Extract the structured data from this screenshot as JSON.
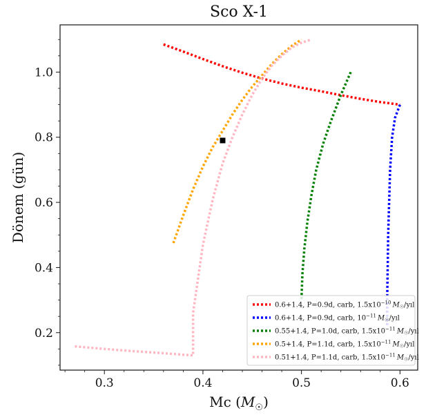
{
  "chart_data": {
    "type": "line",
    "title": "Sco X-1",
    "xlabel_text": "Mc (",
    "xlabel_unit_symbol": "M",
    "xlabel_unit_sub": "☉",
    "xlabel_close": ")",
    "ylabel": "Dönem (gün)",
    "xlim": [
      0.255,
      0.618
    ],
    "ylim": [
      0.085,
      1.145
    ],
    "x_ticks": [
      0.3,
      0.4,
      0.5,
      0.6
    ],
    "x_tick_labels": [
      "0.3",
      "0.4",
      "0.5",
      "0.6"
    ],
    "y_ticks": [
      0.2,
      0.4,
      0.6,
      0.8,
      1.0
    ],
    "y_tick_labels": [
      "0.2",
      "0.4",
      "0.6",
      "0.8",
      "1.0"
    ],
    "grid": false,
    "legend_position": "lower-right",
    "series": [
      {
        "name_pre": "0.6+1.4, P=0.9d, carb, 1.5x10",
        "name_exp": "−10",
        "name_unit": "M",
        "name_unit_sub": "☉",
        "name_post": "/yıl",
        "color": "#ff0000",
        "x": [
          0.36,
          0.38,
          0.4,
          0.42,
          0.44,
          0.46,
          0.48,
          0.5,
          0.52,
          0.54,
          0.56,
          0.58,
          0.6
        ],
        "y": [
          1.085,
          1.063,
          1.04,
          1.018,
          0.998,
          0.98,
          0.965,
          0.952,
          0.941,
          0.929,
          0.918,
          0.908,
          0.9
        ]
      },
      {
        "name_pre": "0.6+1.4, P=0.9d, carb, 10",
        "name_exp": "−11",
        "name_unit": "M",
        "name_unit_sub": "☉",
        "name_post": "/yıl",
        "color": "#0000ff",
        "x": [
          0.6,
          0.595,
          0.592,
          0.59,
          0.589,
          0.588,
          0.5875,
          0.587,
          0.587
        ],
        "y": [
          0.9,
          0.86,
          0.8,
          0.7,
          0.6,
          0.5,
          0.4,
          0.3,
          0.22
        ]
      },
      {
        "name_pre": "0.55+1.4, P=1.0d, carb, 1.5x10",
        "name_exp": "−11",
        "name_unit": "M",
        "name_unit_sub": "☉",
        "name_post": "/yıl",
        "color": "#008000",
        "x": [
          0.55,
          0.54,
          0.53,
          0.522,
          0.515,
          0.51,
          0.506,
          0.503,
          0.501,
          0.5
        ],
        "y": [
          1.0,
          0.93,
          0.85,
          0.78,
          0.7,
          0.62,
          0.54,
          0.46,
          0.38,
          0.3
        ]
      },
      {
        "name_pre": "0.5+1.4, P=1.1d, carb, 1.5x10",
        "name_exp": "−11",
        "name_unit": "M",
        "name_unit_sub": "☉",
        "name_post": "/yıl",
        "color": "#ffa500",
        "x": [
          0.37,
          0.38,
          0.39,
          0.4,
          0.41,
          0.42,
          0.43,
          0.44,
          0.45,
          0.46,
          0.47,
          0.48,
          0.49,
          0.5
        ],
        "y": [
          0.475,
          0.56,
          0.64,
          0.71,
          0.77,
          0.82,
          0.87,
          0.915,
          0.955,
          0.99,
          1.025,
          1.055,
          1.08,
          1.1
        ]
      },
      {
        "name_pre": "0.51+1.4, P=1.1d, carb, 1.5x10",
        "name_exp": "−11",
        "name_unit": "M",
        "name_unit_sub": "☉",
        "name_post": "/yıl",
        "color": "#ffb6c1",
        "x": [
          0.27,
          0.3,
          0.33,
          0.36,
          0.39,
          0.39,
          0.4,
          0.41,
          0.42,
          0.43,
          0.44,
          0.45,
          0.46,
          0.47,
          0.48,
          0.49,
          0.5,
          0.51
        ],
        "y": [
          0.158,
          0.15,
          0.143,
          0.137,
          0.13,
          0.26,
          0.47,
          0.61,
          0.72,
          0.8,
          0.87,
          0.93,
          0.98,
          1.02,
          1.05,
          1.075,
          1.09,
          1.1
        ]
      }
    ],
    "marker": {
      "x": 0.42,
      "y": 0.79,
      "color": "#000000"
    }
  }
}
